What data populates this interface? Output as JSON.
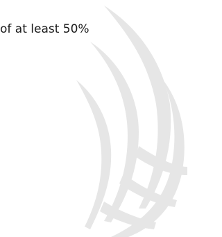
{
  "text": "of at least 50%"
}
